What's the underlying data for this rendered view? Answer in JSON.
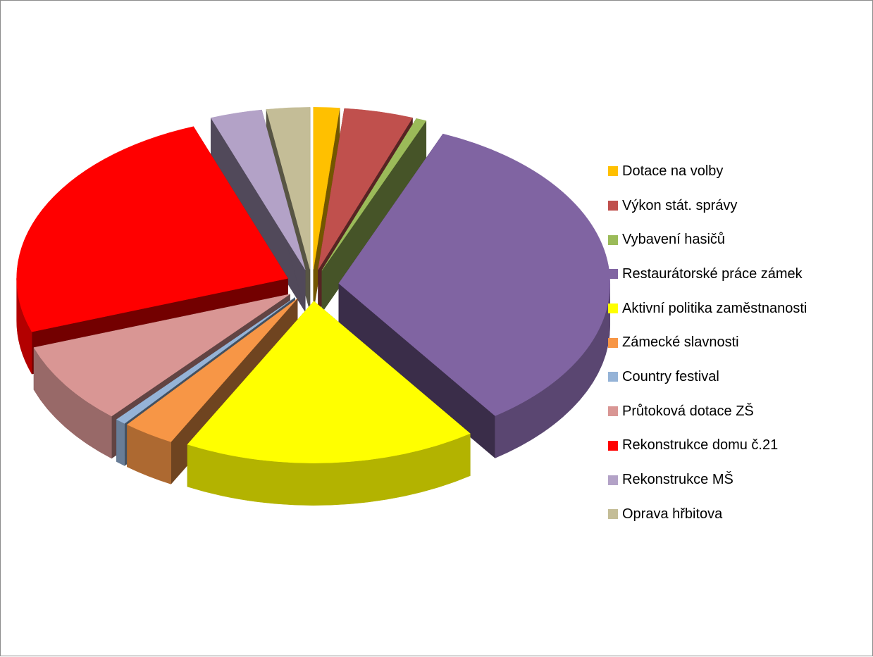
{
  "chart_data": {
    "type": "pie",
    "view": "3d-exploded",
    "legend_position": "right",
    "series": [
      {
        "label": "Dotace na volby",
        "value": 1.5,
        "color": "#FFC000"
      },
      {
        "label": "Výkon stát. správy",
        "value": 4.0,
        "color": "#C0504D"
      },
      {
        "label": "Vybavení hasičů",
        "value": 0.6,
        "color": "#9BBB59"
      },
      {
        "label": "Restaurátorské práce zámek",
        "value": 33.0,
        "color": "#8064A2"
      },
      {
        "label": "Aktivní politika zaměstnanosti",
        "value": 17.0,
        "color": "#FFFF00"
      },
      {
        "label": "Zámecké slavnosti",
        "value": 3.0,
        "color": "#F79646"
      },
      {
        "label": "Country festival",
        "value": 0.6,
        "color": "#95B3D7"
      },
      {
        "label": "Průtoková dotace ZŠ",
        "value": 8.0,
        "color": "#D99694"
      },
      {
        "label": "Rekonstrukce domu č.21",
        "value": 24.0,
        "color": "#FF0000"
      },
      {
        "label": "Rekonstrukce MŠ",
        "value": 3.0,
        "color": "#B3A2C7"
      },
      {
        "label": "Oprava hřbitova",
        "value": 2.5,
        "color": "#C4BD97"
      }
    ]
  }
}
